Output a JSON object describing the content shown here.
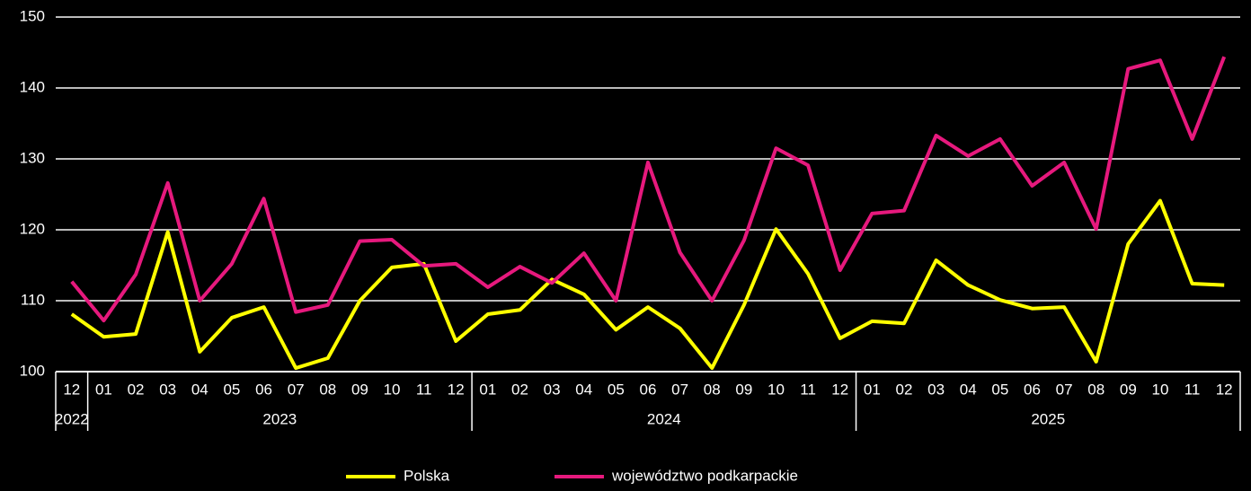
{
  "chart_data": {
    "type": "line",
    "categories": [
      "12",
      "01",
      "02",
      "03",
      "04",
      "05",
      "06",
      "07",
      "08",
      "09",
      "10",
      "11",
      "12",
      "01",
      "02",
      "03",
      "04",
      "05",
      "06",
      "07",
      "08",
      "09",
      "10",
      "11",
      "12",
      "01",
      "02",
      "03",
      "04",
      "05",
      "06",
      "07",
      "08",
      "09",
      "10",
      "11",
      "12"
    ],
    "year_groups": [
      {
        "label": "2022",
        "count": 1
      },
      {
        "label": "2023",
        "count": 12
      },
      {
        "label": "2024",
        "count": 12
      },
      {
        "label": "2025",
        "count": 12
      }
    ],
    "series": [
      {
        "name": "Polska",
        "color": "#ffff00",
        "values": [
          108.1,
          104.9,
          105.3,
          119.7,
          102.8,
          107.6,
          109.1,
          100.5,
          101.9,
          110,
          114.7,
          115.2,
          104.3,
          108.1,
          108.7,
          113,
          110.9,
          105.9,
          109.1,
          106.1,
          100.5,
          109.4,
          120.1,
          113.8,
          104.7,
          107.1,
          106.8,
          115.7,
          112.2,
          110.1,
          108.9,
          109.1,
          101.4,
          118,
          124.1,
          112.4,
          112.2
        ]
      },
      {
        "name": "województwo podkarpackie",
        "color": "#e6197d",
        "values": [
          112.7,
          107.2,
          113.7,
          126.6,
          110,
          115.2,
          124.4,
          108.4,
          109.4,
          118.4,
          118.6,
          114.9,
          115.2,
          111.9,
          114.8,
          112.5,
          116.7,
          110,
          129.5,
          116.8,
          110,
          118.5,
          131.5,
          129.1,
          114.3,
          122.3,
          122.7,
          133.3,
          130.4,
          132.8,
          126.2,
          129.5,
          120.1,
          142.7,
          143.9,
          132.8,
          144.4
        ]
      }
    ],
    "ylim": [
      100,
      150
    ],
    "yticks": [
      100,
      110,
      120,
      130,
      140,
      150
    ],
    "grid": true,
    "legend": "bottom"
  }
}
